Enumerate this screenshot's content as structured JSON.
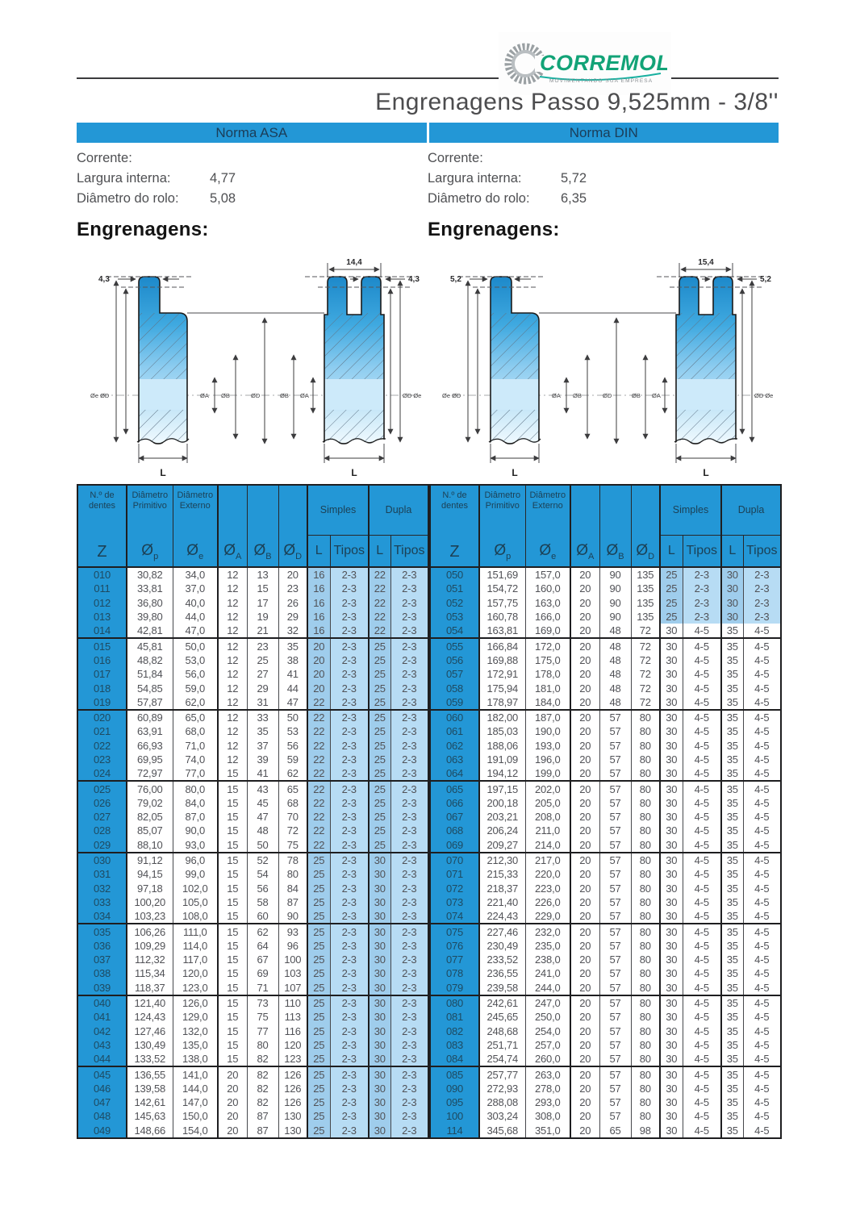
{
  "logo": {
    "name": "CORREMOL",
    "tagline": "MOVIMENTANDO SUA EMPRESA"
  },
  "title": "Engrenagens Passo 9,525mm - 3/8''",
  "sections": [
    {
      "norma": "Norma ASA",
      "corrente_label": "Corrente:",
      "largura_label": "Largura interna:",
      "largura_value": "4,77",
      "rolo_label": "Diâmetro do rolo:",
      "rolo_value": "5,08",
      "engrenagens_label": "Engrenagens:",
      "diagram": {
        "single_tooth": "4,3",
        "dual_span": "14,4",
        "dual_tooth": "4,3",
        "left_dia": "Øe ØD",
        "mid_a": "ØA",
        "mid_b": "ØB",
        "center_d": "ØD",
        "mid_b2": "ØB",
        "mid_a2": "ØA",
        "right_dia": "ØD Øe",
        "len": "L",
        "len2": "L"
      }
    },
    {
      "norma": "Norma DIN",
      "corrente_label": "Corrente:",
      "largura_label": "Largura interna:",
      "largura_value": "5,72",
      "rolo_label": "Diâmetro do rolo:",
      "rolo_value": "6,35",
      "engrenagens_label": "Engrenagens:",
      "diagram": {
        "single_tooth": "5,2",
        "dual_span": "15,4",
        "dual_tooth": "5,2",
        "left_dia": "Øe ØD",
        "mid_a": "ØA",
        "mid_b": "ØB",
        "center_d": "ØD",
        "mid_b2": "ØB",
        "mid_a2": "ØA",
        "right_dia": "ØD Øe",
        "len": "L",
        "len2": "L"
      }
    }
  ],
  "table": {
    "header": {
      "z_title": "N.º de dentes",
      "z_sym": "Z",
      "dp_title": "Diâmetro Primitivo",
      "de_title": "Diâmetro Externo",
      "symbols": {
        "dp": {
          "b": "Ø",
          "s": "p"
        },
        "de": {
          "b": "Ø",
          "s": "e"
        },
        "da": {
          "b": "Ø",
          "s": "A"
        },
        "db": {
          "b": "Ø",
          "s": "B"
        },
        "dd": {
          "b": "Ø",
          "s": "D"
        }
      },
      "simples": "Simples",
      "dupla": "Dupla",
      "l": "L",
      "tipos": "Tipos"
    },
    "asa": {
      "highlight_rows": "all",
      "rows": [
        [
          "010",
          "30,82",
          "34,0",
          "12",
          "13",
          "20",
          "16",
          "2-3",
          "22",
          "2-3"
        ],
        [
          "011",
          "33,81",
          "37,0",
          "12",
          "15",
          "23",
          "16",
          "2-3",
          "22",
          "2-3"
        ],
        [
          "012",
          "36,80",
          "40,0",
          "12",
          "17",
          "26",
          "16",
          "2-3",
          "22",
          "2-3"
        ],
        [
          "013",
          "39,80",
          "44,0",
          "12",
          "19",
          "29",
          "16",
          "2-3",
          "22",
          "2-3"
        ],
        [
          "014",
          "42,81",
          "47,0",
          "12",
          "21",
          "32",
          "16",
          "2-3",
          "22",
          "2-3"
        ],
        [
          "015",
          "45,81",
          "50,0",
          "12",
          "23",
          "35",
          "20",
          "2-3",
          "25",
          "2-3"
        ],
        [
          "016",
          "48,82",
          "53,0",
          "12",
          "25",
          "38",
          "20",
          "2-3",
          "25",
          "2-3"
        ],
        [
          "017",
          "51,84",
          "56,0",
          "12",
          "27",
          "41",
          "20",
          "2-3",
          "25",
          "2-3"
        ],
        [
          "018",
          "54,85",
          "59,0",
          "12",
          "29",
          "44",
          "20",
          "2-3",
          "25",
          "2-3"
        ],
        [
          "019",
          "57,87",
          "62,0",
          "12",
          "31",
          "47",
          "22",
          "2-3",
          "25",
          "2-3"
        ],
        [
          "020",
          "60,89",
          "65,0",
          "12",
          "33",
          "50",
          "22",
          "2-3",
          "25",
          "2-3"
        ],
        [
          "021",
          "63,91",
          "68,0",
          "12",
          "35",
          "53",
          "22",
          "2-3",
          "25",
          "2-3"
        ],
        [
          "022",
          "66,93",
          "71,0",
          "12",
          "37",
          "56",
          "22",
          "2-3",
          "25",
          "2-3"
        ],
        [
          "023",
          "69,95",
          "74,0",
          "12",
          "39",
          "59",
          "22",
          "2-3",
          "25",
          "2-3"
        ],
        [
          "024",
          "72,97",
          "77,0",
          "15",
          "41",
          "62",
          "22",
          "2-3",
          "25",
          "2-3"
        ],
        [
          "025",
          "76,00",
          "80,0",
          "15",
          "43",
          "65",
          "22",
          "2-3",
          "25",
          "2-3"
        ],
        [
          "026",
          "79,02",
          "84,0",
          "15",
          "45",
          "68",
          "22",
          "2-3",
          "25",
          "2-3"
        ],
        [
          "027",
          "82,05",
          "87,0",
          "15",
          "47",
          "70",
          "22",
          "2-3",
          "25",
          "2-3"
        ],
        [
          "028",
          "85,07",
          "90,0",
          "15",
          "48",
          "72",
          "22",
          "2-3",
          "25",
          "2-3"
        ],
        [
          "029",
          "88,10",
          "93,0",
          "15",
          "50",
          "75",
          "22",
          "2-3",
          "25",
          "2-3"
        ],
        [
          "030",
          "91,12",
          "96,0",
          "15",
          "52",
          "78",
          "25",
          "2-3",
          "30",
          "2-3"
        ],
        [
          "031",
          "94,15",
          "99,0",
          "15",
          "54",
          "80",
          "25",
          "2-3",
          "30",
          "2-3"
        ],
        [
          "032",
          "97,18",
          "102,0",
          "15",
          "56",
          "84",
          "25",
          "2-3",
          "30",
          "2-3"
        ],
        [
          "033",
          "100,20",
          "105,0",
          "15",
          "58",
          "87",
          "25",
          "2-3",
          "30",
          "2-3"
        ],
        [
          "034",
          "103,23",
          "108,0",
          "15",
          "60",
          "90",
          "25",
          "2-3",
          "30",
          "2-3"
        ],
        [
          "035",
          "106,26",
          "111,0",
          "15",
          "62",
          "93",
          "25",
          "2-3",
          "30",
          "2-3"
        ],
        [
          "036",
          "109,29",
          "114,0",
          "15",
          "64",
          "96",
          "25",
          "2-3",
          "30",
          "2-3"
        ],
        [
          "037",
          "112,32",
          "117,0",
          "15",
          "67",
          "100",
          "25",
          "2-3",
          "30",
          "2-3"
        ],
        [
          "038",
          "115,34",
          "120,0",
          "15",
          "69",
          "103",
          "25",
          "2-3",
          "30",
          "2-3"
        ],
        [
          "039",
          "118,37",
          "123,0",
          "15",
          "71",
          "107",
          "25",
          "2-3",
          "30",
          "2-3"
        ],
        [
          "040",
          "121,40",
          "126,0",
          "15",
          "73",
          "110",
          "25",
          "2-3",
          "30",
          "2-3"
        ],
        [
          "041",
          "124,43",
          "129,0",
          "15",
          "75",
          "113",
          "25",
          "2-3",
          "30",
          "2-3"
        ],
        [
          "042",
          "127,46",
          "132,0",
          "15",
          "77",
          "116",
          "25",
          "2-3",
          "30",
          "2-3"
        ],
        [
          "043",
          "130,49",
          "135,0",
          "15",
          "80",
          "120",
          "25",
          "2-3",
          "30",
          "2-3"
        ],
        [
          "044",
          "133,52",
          "138,0",
          "15",
          "82",
          "123",
          "25",
          "2-3",
          "30",
          "2-3"
        ],
        [
          "045",
          "136,55",
          "141,0",
          "20",
          "82",
          "126",
          "25",
          "2-3",
          "30",
          "2-3"
        ],
        [
          "046",
          "139,58",
          "144,0",
          "20",
          "82",
          "126",
          "25",
          "2-3",
          "30",
          "2-3"
        ],
        [
          "047",
          "142,61",
          "147,0",
          "20",
          "82",
          "126",
          "25",
          "2-3",
          "30",
          "2-3"
        ],
        [
          "048",
          "145,63",
          "150,0",
          "20",
          "87",
          "130",
          "25",
          "2-3",
          "30",
          "2-3"
        ],
        [
          "049",
          "148,66",
          "154,0",
          "20",
          "87",
          "130",
          "25",
          "2-3",
          "30",
          "2-3"
        ]
      ]
    },
    "din": {
      "highlight_rows": 4,
      "rows": [
        [
          "050",
          "151,69",
          "157,0",
          "20",
          "90",
          "135",
          "25",
          "2-3",
          "30",
          "2-3"
        ],
        [
          "051",
          "154,72",
          "160,0",
          "20",
          "90",
          "135",
          "25",
          "2-3",
          "30",
          "2-3"
        ],
        [
          "052",
          "157,75",
          "163,0",
          "20",
          "90",
          "135",
          "25",
          "2-3",
          "30",
          "2-3"
        ],
        [
          "053",
          "160,78",
          "166,0",
          "20",
          "90",
          "135",
          "25",
          "2-3",
          "30",
          "2-3"
        ],
        [
          "054",
          "163,81",
          "169,0",
          "20",
          "48",
          "72",
          "30",
          "4-5",
          "35",
          "4-5"
        ],
        [
          "055",
          "166,84",
          "172,0",
          "20",
          "48",
          "72",
          "30",
          "4-5",
          "35",
          "4-5"
        ],
        [
          "056",
          "169,88",
          "175,0",
          "20",
          "48",
          "72",
          "30",
          "4-5",
          "35",
          "4-5"
        ],
        [
          "057",
          "172,91",
          "178,0",
          "20",
          "48",
          "72",
          "30",
          "4-5",
          "35",
          "4-5"
        ],
        [
          "058",
          "175,94",
          "181,0",
          "20",
          "48",
          "72",
          "30",
          "4-5",
          "35",
          "4-5"
        ],
        [
          "059",
          "178,97",
          "184,0",
          "20",
          "48",
          "72",
          "30",
          "4-5",
          "35",
          "4-5"
        ],
        [
          "060",
          "182,00",
          "187,0",
          "20",
          "57",
          "80",
          "30",
          "4-5",
          "35",
          "4-5"
        ],
        [
          "061",
          "185,03",
          "190,0",
          "20",
          "57",
          "80",
          "30",
          "4-5",
          "35",
          "4-5"
        ],
        [
          "062",
          "188,06",
          "193,0",
          "20",
          "57",
          "80",
          "30",
          "4-5",
          "35",
          "4-5"
        ],
        [
          "063",
          "191,09",
          "196,0",
          "20",
          "57",
          "80",
          "30",
          "4-5",
          "35",
          "4-5"
        ],
        [
          "064",
          "194,12",
          "199,0",
          "20",
          "57",
          "80",
          "30",
          "4-5",
          "35",
          "4-5"
        ],
        [
          "065",
          "197,15",
          "202,0",
          "20",
          "57",
          "80",
          "30",
          "4-5",
          "35",
          "4-5"
        ],
        [
          "066",
          "200,18",
          "205,0",
          "20",
          "57",
          "80",
          "30",
          "4-5",
          "35",
          "4-5"
        ],
        [
          "067",
          "203,21",
          "208,0",
          "20",
          "57",
          "80",
          "30",
          "4-5",
          "35",
          "4-5"
        ],
        [
          "068",
          "206,24",
          "211,0",
          "20",
          "57",
          "80",
          "30",
          "4-5",
          "35",
          "4-5"
        ],
        [
          "069",
          "209,27",
          "214,0",
          "20",
          "57",
          "80",
          "30",
          "4-5",
          "35",
          "4-5"
        ],
        [
          "070",
          "212,30",
          "217,0",
          "20",
          "57",
          "80",
          "30",
          "4-5",
          "35",
          "4-5"
        ],
        [
          "071",
          "215,33",
          "220,0",
          "20",
          "57",
          "80",
          "30",
          "4-5",
          "35",
          "4-5"
        ],
        [
          "072",
          "218,37",
          "223,0",
          "20",
          "57",
          "80",
          "30",
          "4-5",
          "35",
          "4-5"
        ],
        [
          "073",
          "221,40",
          "226,0",
          "20",
          "57",
          "80",
          "30",
          "4-5",
          "35",
          "4-5"
        ],
        [
          "074",
          "224,43",
          "229,0",
          "20",
          "57",
          "80",
          "30",
          "4-5",
          "35",
          "4-5"
        ],
        [
          "075",
          "227,46",
          "232,0",
          "20",
          "57",
          "80",
          "30",
          "4-5",
          "35",
          "4-5"
        ],
        [
          "076",
          "230,49",
          "235,0",
          "20",
          "57",
          "80",
          "30",
          "4-5",
          "35",
          "4-5"
        ],
        [
          "077",
          "233,52",
          "238,0",
          "20",
          "57",
          "80",
          "30",
          "4-5",
          "35",
          "4-5"
        ],
        [
          "078",
          "236,55",
          "241,0",
          "20",
          "57",
          "80",
          "30",
          "4-5",
          "35",
          "4-5"
        ],
        [
          "079",
          "239,58",
          "244,0",
          "20",
          "57",
          "80",
          "30",
          "4-5",
          "35",
          "4-5"
        ],
        [
          "080",
          "242,61",
          "247,0",
          "20",
          "57",
          "80",
          "30",
          "4-5",
          "35",
          "4-5"
        ],
        [
          "081",
          "245,65",
          "250,0",
          "20",
          "57",
          "80",
          "30",
          "4-5",
          "35",
          "4-5"
        ],
        [
          "082",
          "248,68",
          "254,0",
          "20",
          "57",
          "80",
          "30",
          "4-5",
          "35",
          "4-5"
        ],
        [
          "083",
          "251,71",
          "257,0",
          "20",
          "57",
          "80",
          "30",
          "4-5",
          "35",
          "4-5"
        ],
        [
          "084",
          "254,74",
          "260,0",
          "20",
          "57",
          "80",
          "30",
          "4-5",
          "35",
          "4-5"
        ],
        [
          "085",
          "257,77",
          "263,0",
          "20",
          "57",
          "80",
          "30",
          "4-5",
          "35",
          "4-5"
        ],
        [
          "090",
          "272,93",
          "278,0",
          "20",
          "57",
          "80",
          "30",
          "4-5",
          "35",
          "4-5"
        ],
        [
          "095",
          "288,08",
          "293,0",
          "20",
          "57",
          "80",
          "30",
          "4-5",
          "35",
          "4-5"
        ],
        [
          "100",
          "303,24",
          "308,0",
          "20",
          "57",
          "80",
          "30",
          "4-5",
          "35",
          "4-5"
        ],
        [
          "114",
          "345,68",
          "351,0",
          "20",
          "65",
          "98",
          "30",
          "4-5",
          "35",
          "4-5"
        ]
      ]
    }
  },
  "colors": {
    "blue": "#2397d6",
    "lightL": "#9fcdec",
    "lightT": "#b7dcf4",
    "logo_green": "#12a377",
    "logo_gray": "#9aa0a3"
  }
}
